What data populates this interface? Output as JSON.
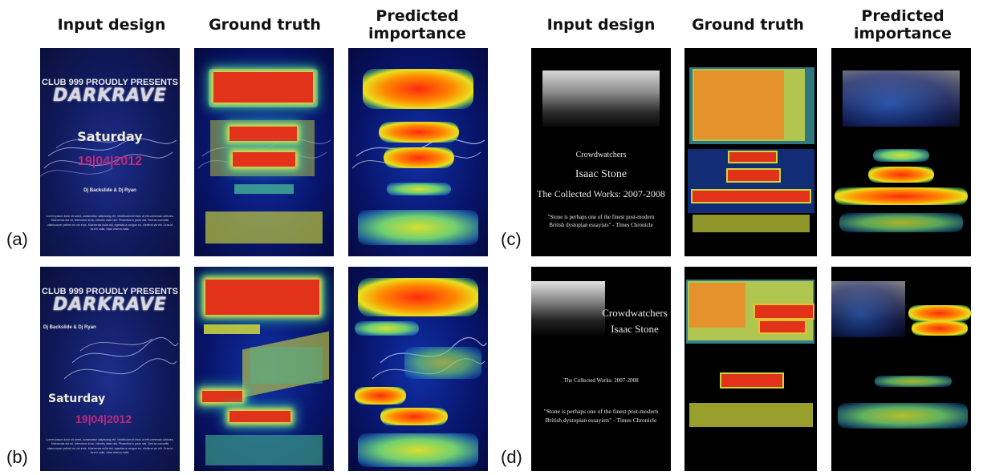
{
  "headers": {
    "left": {
      "input": "Input design",
      "gt": "Ground truth",
      "pred_line1": "Predicted",
      "pred_line2": "importance"
    },
    "right": {
      "input": "Input design",
      "gt": "Ground truth",
      "pred_line1": "Predicted",
      "pred_line2": "importance"
    }
  },
  "row_labels": {
    "a": "(a)",
    "b": "(b)",
    "c": "(c)",
    "d": "(d)"
  },
  "darkrave": {
    "club": "CLUB 999 PROUDLY PRESENTS",
    "title": "DARKRAVE",
    "day": "Saturday",
    "date": "19|04|2012",
    "djs": "Dj Backslide & Dj Ryan",
    "body": "Lorem ipsum dolor sit amet, consectetur adipiscing elit. Vestibulum id risus ut elit commodo ultricies. Maecenas dui mi, bibendum id ac, lobortis vitae nisl. Phasellus in justo nisl. Sed ac convallis ullamcorper pellent eu vel eros. Maecenas nulla dui, egestas a congue eu, eleifend vel elit. Cras id lorem nulla, vitae viverra nulla."
  },
  "crowd": {
    "title": "Crowdwatchers",
    "author": "Isaac Stone",
    "works": "The Collected Works: 2007-2008",
    "quote": "\"Stone is perhaps one of the finest post-modern British dystopian essayists\" - Times Chronicle"
  },
  "colors": {
    "heat_red": "#e2321a",
    "heat_yellow": "#d8e030",
    "heat_green": "#46be96",
    "poster_blue": "#101a5c",
    "accent_magenta": "#c0287a"
  }
}
